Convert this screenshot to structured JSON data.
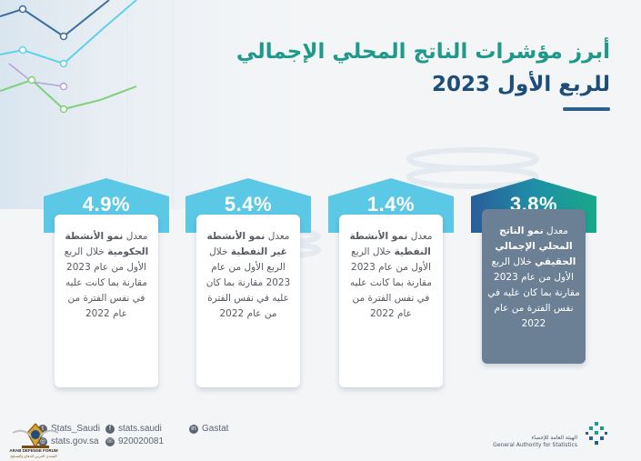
{
  "title": {
    "line1": "أبرز مؤشرات الناتج المحلي الإجمالي",
    "line2": "للربع الأول 2023"
  },
  "cards": [
    {
      "value": "4.9%",
      "lines": [
        "معدل",
        "نمو الأنشطة الحكومية",
        "خلال الربع الأول من عام 2023 مقارنة بما كانت عليه في نفس الفترة من عام 2022"
      ],
      "color": "#5bc8e6"
    },
    {
      "value": "5.4%",
      "lines": [
        "معدل",
        "نمو الأنشطة غير النفطية",
        "خلال الربع الأول من عام 2023 مقارنة بما كان عليه في نفس الفترة من عام 2022"
      ],
      "color": "#5bc8e6"
    },
    {
      "value": "1.4%",
      "lines": [
        "معدل",
        "نمو الأنشطة النفطية",
        "خلال الربع الأول من عام 2023 مقارنة بما كانت عليه في نفس الفترة من عام 2022"
      ],
      "color": "#5bc8e6"
    },
    {
      "value": "3.8%",
      "lines": [
        "معدل",
        "نمو الناتج المحلي الإجمالي الحقيقي",
        "خلال الربع الأول من عام 2023 مقارنة بما كان عليه في نفس الفترة من عام 2022"
      ],
      "color": "#1aa093"
    }
  ],
  "footer": {
    "twitter": "Stats_Saudi",
    "website": "stats.gov.sa",
    "facebook": "stats.saudi",
    "phone": "920020081",
    "linkedin": "Gastat",
    "logo_ar": "الهيئة العامة للإحصاء",
    "logo_en": "General Authority for Statistics"
  },
  "watermark": {
    "en": "ARAB DEFENSE FORUM",
    "ar": "المنتدى العربي للدفاع والتسليح"
  },
  "colors": {
    "title_teal": "#1f9a8a",
    "title_navy": "#1d4e7a",
    "card_light": "#5bc8e6",
    "card_dark_box": "#6b7f95",
    "card_teal": "#1aa093"
  }
}
